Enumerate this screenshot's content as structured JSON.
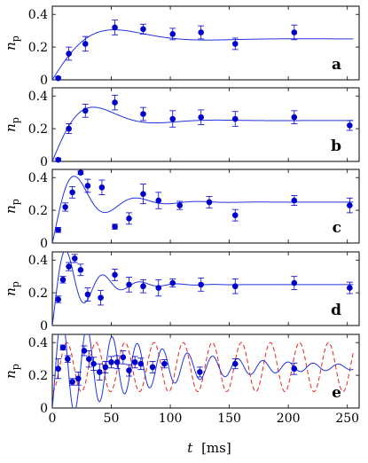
{
  "chart_data": {
    "type": "scatter",
    "xlabel_var": "t",
    "xlabel_unit": "[ms]",
    "ylabel_var": "n",
    "ylabel_sub": "p",
    "xlim": [
      0,
      260
    ],
    "ylim": [
      0,
      0.45
    ],
    "xticks": [
      0,
      50,
      100,
      150,
      200,
      250
    ],
    "yticks": [
      0,
      0.2,
      0.4
    ],
    "ytick_labels": [
      "0",
      "0.2",
      "0.4"
    ],
    "colors": {
      "data": "#0000cc",
      "fit": "#2233dd",
      "dashed": "#ee2222"
    },
    "panels": [
      {
        "letter": "a",
        "points": [
          {
            "x": 5,
            "y": 0.01,
            "err": 0.01
          },
          {
            "x": 14,
            "y": 0.16,
            "err": 0.04
          },
          {
            "x": 28,
            "y": 0.22,
            "err": 0.045
          },
          {
            "x": 53,
            "y": 0.32,
            "err": 0.045
          },
          {
            "x": 77,
            "y": 0.31,
            "err": 0.03
          },
          {
            "x": 102,
            "y": 0.28,
            "err": 0.035
          },
          {
            "x": 126,
            "y": 0.29,
            "err": 0.04
          },
          {
            "x": 155,
            "y": 0.22,
            "err": 0.035
          },
          {
            "x": 205,
            "y": 0.29,
            "err": 0.045
          }
        ],
        "fit": {
          "A": 0.25,
          "gamma": 0.027,
          "omega": 0.04,
          "phase": 0.45
        }
      },
      {
        "letter": "b",
        "points": [
          {
            "x": 5,
            "y": 0.01,
            "err": 0.01
          },
          {
            "x": 14,
            "y": 0.2,
            "err": 0.03
          },
          {
            "x": 28,
            "y": 0.31,
            "err": 0.04
          },
          {
            "x": 53,
            "y": 0.36,
            "err": 0.045
          },
          {
            "x": 77,
            "y": 0.29,
            "err": 0.04
          },
          {
            "x": 102,
            "y": 0.26,
            "err": 0.05
          },
          {
            "x": 126,
            "y": 0.27,
            "err": 0.045
          },
          {
            "x": 155,
            "y": 0.26,
            "err": 0.045
          },
          {
            "x": 205,
            "y": 0.27,
            "err": 0.04
          },
          {
            "x": 252,
            "y": 0.22,
            "err": 0.03
          }
        ],
        "fit": {
          "A": 0.25,
          "gamma": 0.033,
          "omega": 0.06,
          "phase": 0.55
        }
      },
      {
        "letter": "c",
        "points": [
          {
            "x": 5,
            "y": 0.08,
            "err": 0.015
          },
          {
            "x": 11,
            "y": 0.22,
            "err": 0.025
          },
          {
            "x": 17,
            "y": 0.31,
            "err": 0.035
          },
          {
            "x": 24,
            "y": 0.43,
            "err": 0.01
          },
          {
            "x": 30,
            "y": 0.35,
            "err": 0.04
          },
          {
            "x": 42,
            "y": 0.34,
            "err": 0.045
          },
          {
            "x": 53,
            "y": 0.1,
            "err": 0.015
          },
          {
            "x": 65,
            "y": 0.15,
            "err": 0.035
          },
          {
            "x": 77,
            "y": 0.3,
            "err": 0.06
          },
          {
            "x": 90,
            "y": 0.26,
            "err": 0.05
          },
          {
            "x": 108,
            "y": 0.23,
            "err": 0.025
          },
          {
            "x": 133,
            "y": 0.25,
            "err": 0.035
          },
          {
            "x": 155,
            "y": 0.17,
            "err": 0.035
          },
          {
            "x": 205,
            "y": 0.26,
            "err": 0.03
          },
          {
            "x": 252,
            "y": 0.23,
            "err": 0.045
          }
        ],
        "fit": {
          "A": 0.25,
          "gamma": 0.035,
          "omega": 0.12,
          "phase": 0.65
        }
      },
      {
        "letter": "d",
        "points": [
          {
            "x": 5,
            "y": 0.16,
            "err": 0.02
          },
          {
            "x": 9,
            "y": 0.28,
            "err": 0.02
          },
          {
            "x": 14,
            "y": 0.36,
            "err": 0.025
          },
          {
            "x": 19,
            "y": 0.41,
            "err": 0.025
          },
          {
            "x": 24,
            "y": 0.34,
            "err": 0.035
          },
          {
            "x": 30,
            "y": 0.19,
            "err": 0.04
          },
          {
            "x": 41,
            "y": 0.17,
            "err": 0.045
          },
          {
            "x": 53,
            "y": 0.31,
            "err": 0.035
          },
          {
            "x": 65,
            "y": 0.25,
            "err": 0.045
          },
          {
            "x": 77,
            "y": 0.24,
            "err": 0.04
          },
          {
            "x": 90,
            "y": 0.23,
            "err": 0.05
          },
          {
            "x": 102,
            "y": 0.26,
            "err": 0.025
          },
          {
            "x": 126,
            "y": 0.25,
            "err": 0.04
          },
          {
            "x": 155,
            "y": 0.24,
            "err": 0.045
          },
          {
            "x": 205,
            "y": 0.26,
            "err": 0.04
          },
          {
            "x": 252,
            "y": 0.23,
            "err": 0.035
          }
        ],
        "fit": {
          "A": 0.25,
          "gamma": 0.04,
          "omega": 0.2,
          "phase": 0.72
        }
      },
      {
        "letter": "e",
        "points": [
          {
            "x": 5,
            "y": 0.24,
            "err": 0.06
          },
          {
            "x": 9,
            "y": 0.37,
            "err": 0.015
          },
          {
            "x": 13,
            "y": 0.3,
            "err": 0.02
          },
          {
            "x": 17,
            "y": 0.16,
            "err": 0.02
          },
          {
            "x": 22,
            "y": 0.18,
            "err": 0.04
          },
          {
            "x": 27,
            "y": 0.35,
            "err": 0.03
          },
          {
            "x": 31,
            "y": 0.3,
            "err": 0.05
          },
          {
            "x": 35,
            "y": 0.27,
            "err": 0.04
          },
          {
            "x": 40,
            "y": 0.22,
            "err": 0.05
          },
          {
            "x": 45,
            "y": 0.25,
            "err": 0.035
          },
          {
            "x": 50,
            "y": 0.28,
            "err": 0.035
          },
          {
            "x": 55,
            "y": 0.28,
            "err": 0.04
          },
          {
            "x": 60,
            "y": 0.31,
            "err": 0.04
          },
          {
            "x": 65,
            "y": 0.23,
            "err": 0.035
          },
          {
            "x": 70,
            "y": 0.28,
            "err": 0.035
          },
          {
            "x": 75,
            "y": 0.27,
            "err": 0.035
          },
          {
            "x": 85,
            "y": 0.25,
            "err": 0.035
          },
          {
            "x": 95,
            "y": 0.27,
            "err": 0.025
          },
          {
            "x": 125,
            "y": 0.22,
            "err": 0.03
          },
          {
            "x": 155,
            "y": 0.27,
            "err": 0.03
          },
          {
            "x": 205,
            "y": 0.24,
            "err": 0.035
          }
        ],
        "fit": {
          "A": 0.25,
          "gamma": 0.012,
          "omega": 0.295,
          "phase": 0.75
        },
        "dashed": {
          "A": 0.25,
          "amp": 0.15,
          "omega": 0.255
        }
      }
    ]
  }
}
